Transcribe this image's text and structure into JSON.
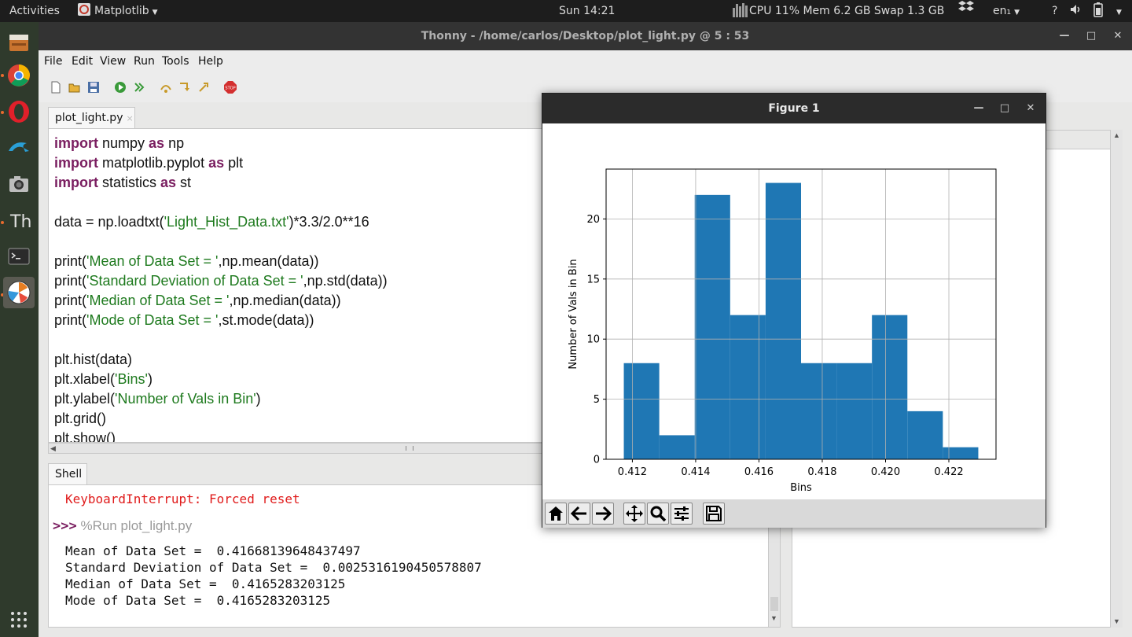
{
  "topbar": {
    "activities": "Activities",
    "app_name": "Matplotlib",
    "clock": "Sun 14:21",
    "sysmon": "CPU 11% Mem 6.2 GB Swap 1.3 GB",
    "lang": "en₁",
    "help": "?"
  },
  "dock": {
    "icons": [
      "files-icon",
      "chrome-icon",
      "opera-icon",
      "dolphin-icon",
      "camera-icon",
      "thonny-icon",
      "terminal-icon",
      "matplotlib-icon",
      "app-grid-icon"
    ]
  },
  "window": {
    "title": "Thonny  -  /home/carlos/Desktop/plot_light.py  @  5 : 53"
  },
  "menu": [
    "File",
    "Edit",
    "View",
    "Run",
    "Tools",
    "Help"
  ],
  "editor": {
    "tab_label": "plot_light.py",
    "tab_close": "×",
    "lines": [
      [
        {
          "t": "import",
          "c": "kw"
        },
        {
          "t": " numpy ",
          "c": ""
        },
        {
          "t": "as",
          "c": "kw"
        },
        {
          "t": " np",
          "c": ""
        }
      ],
      [
        {
          "t": "import",
          "c": "kw"
        },
        {
          "t": " matplotlib.pyplot ",
          "c": ""
        },
        {
          "t": "as",
          "c": "kw"
        },
        {
          "t": " plt",
          "c": ""
        }
      ],
      [
        {
          "t": "import",
          "c": "kw"
        },
        {
          "t": " statistics ",
          "c": ""
        },
        {
          "t": "as",
          "c": "kw"
        },
        {
          "t": " st",
          "c": ""
        }
      ],
      [],
      [
        {
          "t": "data = np.loadtxt(",
          "c": ""
        },
        {
          "t": "'Light_Hist_Data.txt'",
          "c": "str"
        },
        {
          "t": ")*3.3/2.0**16",
          "c": ""
        }
      ],
      [],
      [
        {
          "t": "print(",
          "c": ""
        },
        {
          "t": "'Mean of Data Set = '",
          "c": "str"
        },
        {
          "t": ",np.mean(data))",
          "c": ""
        }
      ],
      [
        {
          "t": "print(",
          "c": ""
        },
        {
          "t": "'Standard Deviation of Data Set = '",
          "c": "str"
        },
        {
          "t": ",np.std(data))",
          "c": ""
        }
      ],
      [
        {
          "t": "print(",
          "c": ""
        },
        {
          "t": "'Median of Data Set = '",
          "c": "str"
        },
        {
          "t": ",np.median(data))",
          "c": ""
        }
      ],
      [
        {
          "t": "print(",
          "c": ""
        },
        {
          "t": "'Mode of Data Set = '",
          "c": "str"
        },
        {
          "t": ",st.mode(data))",
          "c": ""
        }
      ],
      [],
      [
        {
          "t": "plt.hist(data)",
          "c": ""
        }
      ],
      [
        {
          "t": "plt.xlabel(",
          "c": ""
        },
        {
          "t": "'Bins'",
          "c": "str"
        },
        {
          "t": ")",
          "c": ""
        }
      ],
      [
        {
          "t": "plt.ylabel(",
          "c": ""
        },
        {
          "t": "'Number of Vals in Bin'",
          "c": "str"
        },
        {
          "t": ")",
          "c": ""
        }
      ],
      [
        {
          "t": "plt.grid()",
          "c": ""
        }
      ],
      [
        {
          "t": "plt.show()",
          "c": ""
        }
      ]
    ]
  },
  "shell": {
    "tab_label": "Shell",
    "error": "KeyboardInterrupt: Forced reset",
    "prompt": ">>>",
    "command": "%Run plot_light.py",
    "outputs": [
      "Mean of Data Set =  0.41668139648437497",
      "Standard Deviation of Data Set =  0.0025316190450578807",
      "Median of Data Set =  0.4165283203125",
      "Mode of Data Set =  0.4165283203125"
    ]
  },
  "figure": {
    "title": "Figure 1",
    "toolbar_icons": [
      "home-icon",
      "back-arrow-icon",
      "forward-arrow-icon",
      "pan-icon",
      "zoom-icon",
      "configure-subplots-icon",
      "save-icon"
    ]
  },
  "chart_data": {
    "type": "bar",
    "xlabel": "Bins",
    "ylabel": "Number of Vals in Bin",
    "bin_edges": [
      0.41173,
      0.41285,
      0.41397,
      0.41509,
      0.41621,
      0.41733,
      0.41845,
      0.41957,
      0.42069,
      0.42181,
      0.42293
    ],
    "values": [
      8,
      2,
      22,
      12,
      23,
      8,
      8,
      12,
      4,
      1
    ],
    "xlim": [
      0.41117,
      0.42349
    ],
    "ylim": [
      0,
      24.15
    ],
    "xticks": [
      0.412,
      0.414,
      0.416,
      0.418,
      0.42,
      0.422
    ],
    "xtick_labels": [
      "0.412",
      "0.414",
      "0.416",
      "0.418",
      "0.420",
      "0.422"
    ],
    "yticks": [
      0,
      5,
      10,
      15,
      20
    ],
    "ytick_labels": [
      "0",
      "5",
      "10",
      "15",
      "20"
    ],
    "grid": true,
    "bar_color": "#1f77b4"
  }
}
